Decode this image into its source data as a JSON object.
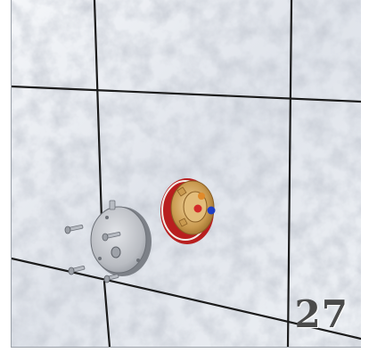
{
  "illustration": {
    "step_number": "27",
    "colors": {
      "tile_base": "#e8ebf0",
      "grout": "#1b1b1b",
      "cover_plate": "#c9cbcf",
      "valve_outer": "#b81f1f",
      "valve_inner": "#d9b26e",
      "hot_marker": "#d22a2a",
      "cold_marker": "#1f3fc4"
    },
    "parts": [
      "tiled-wall",
      "cover-plate",
      "screws",
      "valve-body"
    ]
  }
}
